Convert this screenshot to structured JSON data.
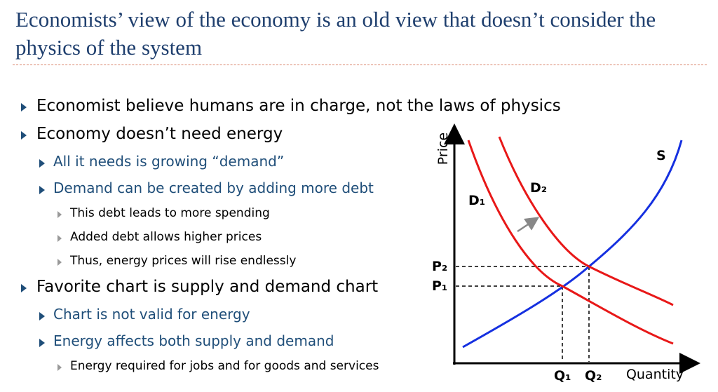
{
  "title": "Economists’ view of the economy is an old view that doesn’t consider the physics of the system",
  "bullets": [
    {
      "text": "Economist believe humans are in charge, not the laws of physics"
    },
    {
      "text": "Economy doesn’t need energy",
      "children": [
        {
          "text": "All it needs is growing “demand”"
        },
        {
          "text": "Demand can be created by adding more debt",
          "children": [
            {
              "text": "This debt leads to more spending"
            },
            {
              "text": "Added debt allows higher prices"
            },
            {
              "text": "Thus, energy prices will rise endlessly"
            }
          ]
        }
      ]
    },
    {
      "text": "Favorite chart is supply and demand chart",
      "children": [
        {
          "text": "Chart is not valid for energy"
        },
        {
          "text": "Energy affects both supply and demand",
          "children": [
            {
              "text": "Energy required for jobs and for goods and services"
            }
          ]
        }
      ]
    }
  ],
  "diagram": {
    "y_axis": "Price",
    "x_axis": "Quantity",
    "supply": "S",
    "demand_1": "D₁",
    "demand_2": "D₂",
    "price_1": "P₁",
    "price_2": "P₂",
    "quantity_1": "Q₁",
    "quantity_2": "Q₂"
  }
}
